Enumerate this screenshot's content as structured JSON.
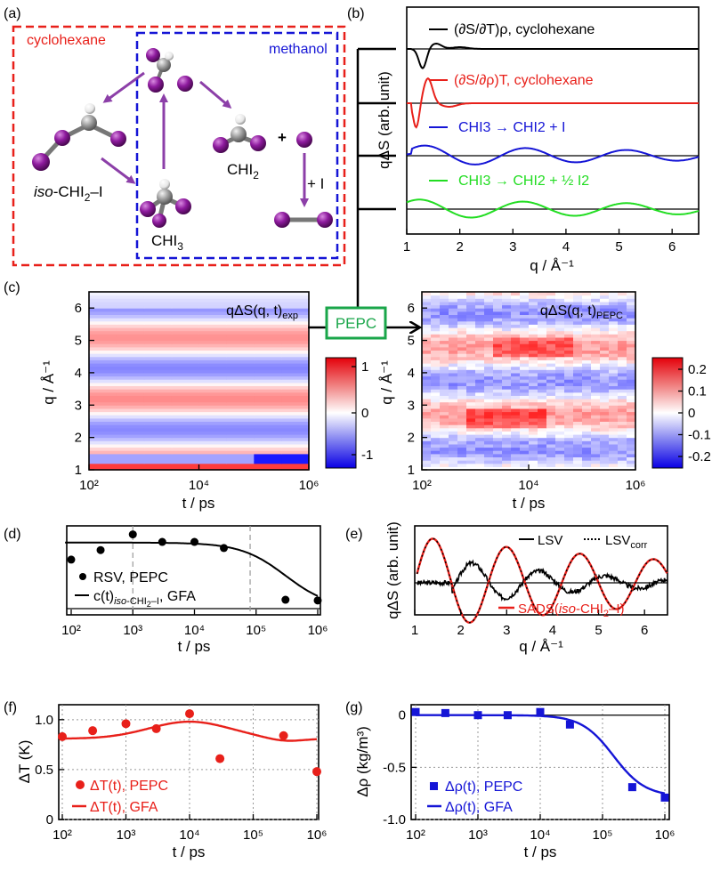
{
  "panel_labels": {
    "a": "(a)",
    "b": "(b)",
    "c": "(c)",
    "d": "(d)",
    "e": "(e)",
    "f": "(f)",
    "g": "(g)"
  },
  "panel_a": {
    "cyclohexane": "cyclohexane",
    "methanol": "methanol",
    "iso_pre": "iso",
    "iso_rest": "-CHI",
    "iso_sub": "2",
    "iso_end": "–I",
    "chi3": "CHI",
    "chi3_sub": "3",
    "chi2": "CHI",
    "chi2_sub": "2",
    "plus1": "+",
    "plus2": "+ I",
    "colors": {
      "cyclohexane": "#e8201a",
      "methanol": "#1515d6",
      "arrow": "#8c3fa8",
      "iodine": "#8e1b9e",
      "carbon": "#9a9a9a",
      "hydrogen": "#ffffff"
    }
  },
  "panel_b": {
    "ylabel": "qΔS (arb. unit)",
    "xlabel": "q / Å⁻¹",
    "xticks": [
      "1",
      "2",
      "3",
      "4",
      "5",
      "6"
    ],
    "legend": [
      {
        "text": "(∂S/∂T)ρ, cyclohexane",
        "color": "#000000"
      },
      {
        "text": "(∂S/∂ρ)T, cyclohexane",
        "color": "#e8201a"
      },
      {
        "text": "CHI3 → CHI2 + I",
        "color": "#1515d6"
      },
      {
        "text": "CHI3 → CHI2 + ½ I2",
        "color": "#22dd22"
      }
    ]
  },
  "panel_c": {
    "left_title": "qΔS(q, t)exp",
    "right_title": "qΔS(q, t)PEPC",
    "pepc": "PEPC",
    "ylabel": "q / Å⁻¹",
    "xlabel": "t / ps",
    "xticks": [
      "10²",
      "10⁴",
      "10⁶"
    ],
    "yticks": [
      "1",
      "2",
      "3",
      "4",
      "5",
      "6"
    ],
    "cbar_left": [
      "1",
      "0",
      "-1"
    ],
    "cbar_right": [
      "0.2",
      "0.1",
      "0",
      "-0.1",
      "-0.2"
    ]
  },
  "panel_d": {
    "xlabel": "t / ps",
    "xticks": [
      "10²",
      "10³",
      "10⁴",
      "10⁵",
      "10⁶"
    ],
    "legend_points": "RSV, PEPC",
    "legend_line": "c(t)iso-CHI2–I, GFA"
  },
  "panel_e": {
    "ylabel": "qΔS (arb. unit)",
    "xlabel": "q / Å⁻¹",
    "xticks": [
      "1",
      "2",
      "3",
      "4",
      "5",
      "6"
    ],
    "legend_lsv": "LSV",
    "legend_lsvcorr": "LSVcorr",
    "legend_sads": "SADS(iso-CHI2–I)"
  },
  "panel_f": {
    "ylabel": "ΔT (K)",
    "xlabel": "t / ps",
    "xticks": [
      "10²",
      "10³",
      "10⁴",
      "10⁵",
      "10⁶"
    ],
    "yticks": [
      "0",
      "0.5",
      "1.0"
    ],
    "legend_points": "ΔT(t), PEPC",
    "legend_line": "ΔT(t), GFA",
    "color": "#e8201a"
  },
  "panel_g": {
    "ylabel": "Δρ (kg/m³)",
    "xlabel": "t / ps",
    "xticks": [
      "10²",
      "10³",
      "10⁴",
      "10⁵",
      "10⁶"
    ],
    "yticks": [
      "0",
      "-0.5",
      "-1.0"
    ],
    "legend_points": "Δρ(t), PEPC",
    "legend_line": "Δρ(t), GFA",
    "color": "#1515d6"
  },
  "chart_data": [
    {
      "panel": "b",
      "type": "line",
      "xlabel": "q / Å⁻¹",
      "ylabel": "qΔS (arb. unit)",
      "xlim": [
        1,
        6.5
      ]
    },
    {
      "panel": "d",
      "type": "scatter",
      "xlabel": "t / ps",
      "x_log": true,
      "xlim": [
        80,
        1000000
      ],
      "series": [
        {
          "name": "RSV, PEPC",
          "x": [
            100,
            300,
            1000,
            3000,
            10000,
            30000,
            300000,
            1000000
          ],
          "y": [
            0.72,
            0.86,
            1.09,
            0.98,
            0.98,
            0.89,
            0.13,
            0.12
          ]
        },
        {
          "name": "c(t)iso-CHI2–I, GFA",
          "kind": "line"
        }
      ],
      "vlines": [
        1000,
        80000
      ]
    },
    {
      "panel": "e",
      "type": "line",
      "xlabel": "q / Å⁻¹",
      "ylabel": "qΔS (arb. unit)",
      "xlim": [
        1,
        6.5
      ],
      "series": [
        {
          "name": "LSV"
        },
        {
          "name": "LSVcorr"
        },
        {
          "name": "SADS(iso-CHI2–I)"
        }
      ]
    },
    {
      "panel": "f",
      "type": "scatter",
      "xlabel": "t / ps",
      "ylabel": "ΔT (K)",
      "x_log": true,
      "ylim": [
        0,
        1.15
      ],
      "series": [
        {
          "name": "ΔT(t), PEPC",
          "x": [
            100,
            300,
            1000,
            3000,
            10000,
            30000,
            300000,
            1000000
          ],
          "y": [
            0.83,
            0.89,
            0.96,
            0.91,
            1.06,
            0.61,
            0.84,
            0.48
          ]
        },
        {
          "name": "ΔT(t), GFA",
          "x": [
            100,
            300,
            1000,
            3000,
            10000,
            30000,
            100000,
            300000,
            1000000
          ],
          "y": [
            0.81,
            0.83,
            0.88,
            0.95,
            0.97,
            0.95,
            0.9,
            0.8,
            0.8
          ]
        }
      ]
    },
    {
      "panel": "g",
      "type": "scatter",
      "xlabel": "t / ps",
      "ylabel": "Δρ (kg/m³)",
      "x_log": true,
      "ylim": [
        -1.0,
        0.1
      ],
      "series": [
        {
          "name": "Δρ(t), PEPC",
          "x": [
            100,
            300,
            1000,
            3000,
            10000,
            30000,
            300000,
            1000000
          ],
          "y": [
            0.03,
            0.02,
            0.0,
            0.0,
            0.03,
            -0.09,
            -0.69,
            -0.79
          ]
        },
        {
          "name": "Δρ(t), GFA",
          "x": [
            100,
            1000,
            10000,
            30000,
            100000,
            200000,
            300000,
            1000000
          ],
          "y": [
            0.0,
            0.0,
            0.0,
            -0.05,
            -0.3,
            -0.6,
            -0.7,
            -0.78
          ]
        }
      ]
    }
  ]
}
